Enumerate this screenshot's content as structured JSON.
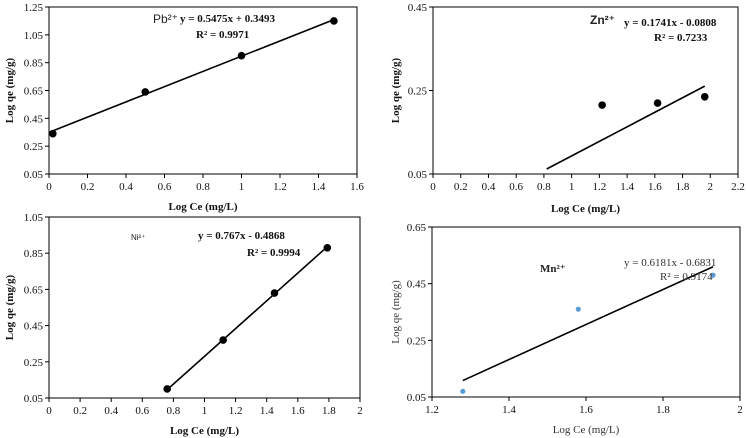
{
  "colors": {
    "marker_black": "#000000",
    "marker_blue": "#5b9bd5",
    "line": "#000000"
  },
  "chart_data": [
    {
      "type": "scatter",
      "ion_label": "Pb²⁺",
      "equation": "y = 0.5475x + 0.3493",
      "r_squared": "R² =  0.9971",
      "xlabel": "Log Ce (mg/L)",
      "ylabel": "Log qe (mg/g)",
      "xlim": [
        0,
        1.6
      ],
      "ylim": [
        0.05,
        1.25
      ],
      "xticks": [
        "0",
        "0.2",
        "0.4",
        "0.6",
        "0.8",
        "1",
        "1.2",
        "1.4",
        "1.6"
      ],
      "yticks": [
        "0.05",
        "0.25",
        "0.45",
        "0.65",
        "0.85",
        "1.05",
        "1.25"
      ],
      "points": [
        {
          "x": 0.02,
          "y": 0.34
        },
        {
          "x": 0.5,
          "y": 0.64
        },
        {
          "x": 1.0,
          "y": 0.9
        },
        {
          "x": 1.48,
          "y": 1.15
        }
      ],
      "fit": {
        "slope": 0.5475,
        "intercept": 0.3493,
        "x_range": [
          0,
          1.48
        ]
      },
      "marker_color": "#000000",
      "grid": false
    },
    {
      "type": "scatter",
      "ion_label": "Zn²⁺",
      "equation": "y = 0.1741x - 0.0808",
      "r_squared": "R² = 0.7233",
      "xlabel": "Log Ce (mg/L)",
      "ylabel": "Log qe (mg/g)",
      "xlim": [
        0,
        2.2
      ],
      "ylim": [
        0.05,
        0.45
      ],
      "xticks": [
        "0",
        "0.2",
        "0.4",
        "0.6",
        "0.8",
        "1",
        "1.2",
        "1.4",
        "1.6",
        "1.8",
        "2",
        "2.2"
      ],
      "yticks": [
        "0.05",
        "0.25",
        "0.45"
      ],
      "points": [
        {
          "x": 1.22,
          "y": 0.215
        },
        {
          "x": 1.62,
          "y": 0.22
        },
        {
          "x": 1.96,
          "y": 0.235
        }
      ],
      "fit": {
        "slope": 0.1741,
        "intercept": -0.0808,
        "x_range": [
          0.82,
          1.96
        ]
      },
      "marker_color": "#000000",
      "grid": false
    },
    {
      "type": "scatter",
      "ion_label": "Ni²⁺",
      "equation": "y = 0.767x - 0.4868",
      "r_squared": "R² = 0.9994",
      "xlabel": "Log Ce (mg/L)",
      "ylabel": "Log qe (mg/g)",
      "xlim": [
        0,
        2
      ],
      "ylim": [
        0.05,
        1.05
      ],
      "xticks": [
        "0",
        "0.2",
        "0.4",
        "0.6",
        "0.8",
        "1",
        "1.2",
        "1.4",
        "1.6",
        "1.8",
        "2"
      ],
      "yticks": [
        "0.05",
        "0.25",
        "0.45",
        "0.65",
        "0.85",
        "1.05"
      ],
      "points": [
        {
          "x": 0.76,
          "y": 0.1
        },
        {
          "x": 1.12,
          "y": 0.37
        },
        {
          "x": 1.45,
          "y": 0.63
        },
        {
          "x": 1.79,
          "y": 0.88
        }
      ],
      "fit": {
        "slope": 0.767,
        "intercept": -0.4868,
        "x_range": [
          0.76,
          1.79
        ]
      },
      "marker_color": "#000000",
      "grid": false
    },
    {
      "type": "scatter",
      "ion_label": "Mn²⁺",
      "equation": "y = 0.6181x - 0.6831",
      "r_squared": "R² = 0.9174",
      "xlabel": "Log Ce (mg/L)",
      "ylabel": "Log qe (mg/g)",
      "xlim": [
        1.2,
        2
      ],
      "ylim": [
        0.05,
        0.65
      ],
      "xticks": [
        "1.2",
        "1.4",
        "1.6",
        "1.8",
        "2"
      ],
      "yticks": [
        "0.05",
        "0.25",
        "0.45",
        "0.65"
      ],
      "points": [
        {
          "x": 1.28,
          "y": 0.07
        },
        {
          "x": 1.58,
          "y": 0.36
        },
        {
          "x": 1.93,
          "y": 0.48
        }
      ],
      "fit": {
        "slope": 0.6181,
        "intercept": -0.6831,
        "x_range": [
          1.28,
          1.93
        ]
      },
      "marker_color": "#5b9bd5",
      "grid": false
    }
  ]
}
